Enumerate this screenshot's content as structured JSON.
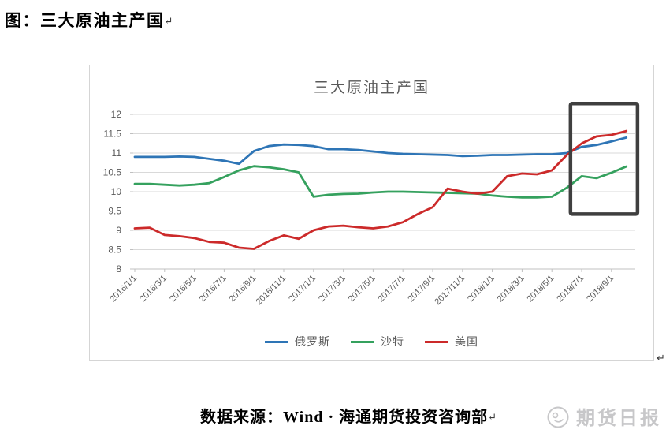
{
  "document": {
    "title": "图：三大原油主产国",
    "paragraph_mark": "↵"
  },
  "footer": {
    "source_text": "数据来源：Wind · 海通期货投资咨询部",
    "paragraph_mark": "↵"
  },
  "watermark": {
    "text": "期货日报"
  },
  "colors": {
    "russia_line": "#2E75B6",
    "saudi_line": "#35A15E",
    "us_line": "#CC2A2A",
    "grid": "#D9D9D9",
    "axis_line": "#C0C0C0",
    "axis_text": "#595959",
    "annotation_box": "#3F3F3F",
    "chart_border": "#D5D5D5",
    "watermark_gray": "#C7C7C9"
  },
  "chart_data": {
    "type": "line",
    "title": "三大原油主产国",
    "xlabel": "",
    "ylabel": "",
    "ylim": [
      8,
      12
    ],
    "ytick_step": 0.5,
    "grid": true,
    "legend_position": "bottom",
    "x_tick_every": 2,
    "x": [
      "2016/1/1",
      "2016/2/1",
      "2016/3/1",
      "2016/4/1",
      "2016/5/1",
      "2016/6/1",
      "2016/7/1",
      "2016/8/1",
      "2016/9/1",
      "2016/10/1",
      "2016/11/1",
      "2016/12/1",
      "2017/1/1",
      "2017/2/1",
      "2017/3/1",
      "2017/4/1",
      "2017/5/1",
      "2017/6/1",
      "2017/7/1",
      "2017/8/1",
      "2017/9/1",
      "2017/10/1",
      "2017/11/1",
      "2017/12/1",
      "2018/1/1",
      "2018/2/1",
      "2018/3/1",
      "2018/4/1",
      "2018/5/1",
      "2018/6/1",
      "2018/7/1",
      "2018/8/1",
      "2018/9/1",
      "2018/10/1"
    ],
    "x_tick_labels": [
      "2016/1/1",
      "2016/3/1",
      "2016/5/1",
      "2016/7/1",
      "2016/9/1",
      "2016/11/1",
      "2017/1/1",
      "2017/3/1",
      "2017/5/1",
      "2017/7/1",
      "2017/9/1",
      "2017/11/1",
      "2018/1/1",
      "2018/3/1",
      "2018/5/1",
      "2018/7/1",
      "2018/9/1"
    ],
    "series": [
      {
        "name": "俄罗斯",
        "color": "#2E75B6",
        "values": [
          10.9,
          10.9,
          10.9,
          10.91,
          10.9,
          10.85,
          10.8,
          10.72,
          11.05,
          11.18,
          11.22,
          11.21,
          11.18,
          11.1,
          11.1,
          11.08,
          11.04,
          11.0,
          10.98,
          10.97,
          10.96,
          10.95,
          10.92,
          10.93,
          10.95,
          10.95,
          10.96,
          10.97,
          10.97,
          11.0,
          11.16,
          11.21,
          11.3,
          11.4
        ]
      },
      {
        "name": "沙特",
        "color": "#35A15E",
        "values": [
          10.2,
          10.2,
          10.18,
          10.16,
          10.18,
          10.22,
          10.38,
          10.55,
          10.66,
          10.63,
          10.58,
          10.5,
          9.87,
          9.92,
          9.94,
          9.95,
          9.98,
          10.0,
          10.0,
          9.99,
          9.98,
          9.97,
          9.96,
          9.95,
          9.9,
          9.87,
          9.85,
          9.85,
          9.87,
          10.1,
          10.4,
          10.35,
          10.49,
          10.65
        ]
      },
      {
        "name": "美国",
        "color": "#CC2A2A",
        "values": [
          9.05,
          9.07,
          8.88,
          8.85,
          8.8,
          8.7,
          8.68,
          8.55,
          8.52,
          8.72,
          8.87,
          8.78,
          9.0,
          9.1,
          9.12,
          9.08,
          9.05,
          9.1,
          9.21,
          9.42,
          9.6,
          10.08,
          10.0,
          9.95,
          10.0,
          10.4,
          10.47,
          10.45,
          10.55,
          10.95,
          11.25,
          11.43,
          11.47,
          11.57
        ]
      }
    ],
    "annotation_box": {
      "month_start": 29.25,
      "month_end": 33.75,
      "value_top": 12.28,
      "value_bottom": 9.42,
      "color": "#3F3F3F"
    }
  }
}
